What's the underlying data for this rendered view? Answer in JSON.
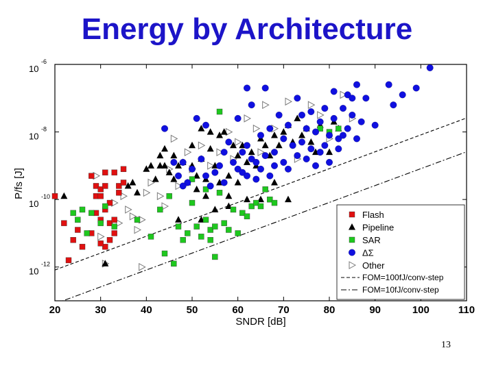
{
  "slide": {
    "title": "Energy by Architecture",
    "number": "13"
  },
  "chart_data": {
    "type": "scatter",
    "title": "Energy by Architecture",
    "xlabel": "SNDR [dB]",
    "ylabel": "P/fs [J]",
    "xlim": [
      20,
      110
    ],
    "ylim": [
      -13,
      -6
    ],
    "y_scale": "log10",
    "xticks": [
      "20",
      "30",
      "40",
      "50",
      "60",
      "70",
      "80",
      "90",
      "100",
      "110"
    ],
    "yticks": [
      {
        "value": -6,
        "base": "10",
        "exp": "-6"
      },
      {
        "value": -8,
        "base": "10",
        "exp": "-8"
      },
      {
        "value": -10,
        "base": "10",
        "exp": "-10"
      },
      {
        "value": -12,
        "base": "10",
        "exp": "-12"
      }
    ],
    "grid": false,
    "legend_position": "bottom-right",
    "series": [
      {
        "name": "Flash",
        "marker": "square",
        "color": "#e01010",
        "points": [
          [
            20,
            -9.9
          ],
          [
            22,
            -10.7
          ],
          [
            23,
            -11.8
          ],
          [
            24,
            -11.2
          ],
          [
            25,
            -10.9
          ],
          [
            26,
            -11.4
          ],
          [
            28,
            -11.0
          ],
          [
            28,
            -9.3
          ],
          [
            29,
            -9.9
          ],
          [
            29,
            -9.6
          ],
          [
            30,
            -9.7
          ],
          [
            30,
            -9.9
          ],
          [
            30,
            -10.6
          ],
          [
            31,
            -9.2
          ],
          [
            31,
            -9.6
          ],
          [
            31,
            -10.3
          ],
          [
            31,
            -11.4
          ],
          [
            32,
            -10.1
          ],
          [
            32,
            -10.7
          ],
          [
            32,
            -11.2
          ],
          [
            33,
            -9.2
          ],
          [
            33,
            -10.6
          ],
          [
            33,
            -11.0
          ],
          [
            34,
            -9.6
          ],
          [
            34,
            -9.8
          ],
          [
            35,
            -9.1
          ],
          [
            35,
            -9.5
          ],
          [
            29,
            -10.4
          ],
          [
            30,
            -11.3
          ]
        ]
      },
      {
        "name": "Pipeline",
        "marker": "triangle",
        "color": "#000000",
        "points": [
          [
            22,
            -9.9
          ],
          [
            31,
            -11.9
          ],
          [
            36,
            -9.6
          ],
          [
            37,
            -9.5
          ],
          [
            38,
            -9.8
          ],
          [
            40,
            -9.1
          ],
          [
            41,
            -9.0
          ],
          [
            42,
            -9.4
          ],
          [
            43,
            -8.7
          ],
          [
            43,
            -9.0
          ],
          [
            44,
            -8.5
          ],
          [
            44,
            -9.0
          ],
          [
            45,
            -9.2
          ],
          [
            46,
            -8.7
          ],
          [
            46,
            -9.4
          ],
          [
            47,
            -9.0
          ],
          [
            48,
            -8.9
          ],
          [
            49,
            -9.5
          ],
          [
            50,
            -9.0
          ],
          [
            50,
            -8.4
          ],
          [
            51,
            -9.3
          ],
          [
            51,
            -9.7
          ],
          [
            52,
            -8.8
          ],
          [
            52,
            -7.9
          ],
          [
            53,
            -9.4
          ],
          [
            53,
            -9.9
          ],
          [
            54,
            -8.0
          ],
          [
            54,
            -8.5
          ],
          [
            55,
            -9.0
          ],
          [
            56,
            -8.1
          ],
          [
            56,
            -9.5
          ],
          [
            57,
            -8.0
          ],
          [
            58,
            -9.3
          ],
          [
            58,
            -10.2
          ],
          [
            59,
            -8.4
          ],
          [
            60,
            -8.7
          ],
          [
            61,
            -8.4
          ],
          [
            62,
            -8.9
          ],
          [
            63,
            -8.6
          ],
          [
            64,
            -9.0
          ],
          [
            65,
            -8.2
          ],
          [
            66,
            -8.4
          ],
          [
            67,
            -8.7
          ],
          [
            68,
            -8.1
          ],
          [
            69,
            -8.4
          ],
          [
            70,
            -8.0
          ],
          [
            71,
            -7.8
          ],
          [
            72,
            -8.3
          ],
          [
            73,
            -7.6
          ],
          [
            74,
            -8.1
          ],
          [
            75,
            -7.9
          ],
          [
            76,
            -8.3
          ],
          [
            77,
            -8.6
          ],
          [
            78,
            -7.8
          ],
          [
            80,
            -8.6
          ],
          [
            81,
            -7.7
          ],
          [
            82,
            -7.9
          ],
          [
            60,
            -9.5
          ],
          [
            62,
            -10.0
          ],
          [
            65,
            -10.0
          ],
          [
            55,
            -10.3
          ],
          [
            58,
            -9.9
          ],
          [
            68,
            -9.5
          ],
          [
            71,
            -10.0
          ],
          [
            47,
            -10.6
          ],
          [
            52,
            -10.6
          ]
        ]
      },
      {
        "name": "SAR",
        "marker": "square",
        "color": "#1ec81e",
        "points": [
          [
            24,
            -10.4
          ],
          [
            25,
            -10.6
          ],
          [
            26,
            -10.3
          ],
          [
            27,
            -11.0
          ],
          [
            28,
            -10.4
          ],
          [
            30,
            -10.7
          ],
          [
            31,
            -10.2
          ],
          [
            33,
            -10.8
          ],
          [
            38,
            -10.6
          ],
          [
            41,
            -11.1
          ],
          [
            43,
            -10.3
          ],
          [
            44,
            -11.6
          ],
          [
            45,
            -9.9
          ],
          [
            46,
            -11.9
          ],
          [
            47,
            -10.8
          ],
          [
            48,
            -11.2
          ],
          [
            49,
            -11.0
          ],
          [
            50,
            -10.1
          ],
          [
            50,
            -9.4
          ],
          [
            51,
            -10.8
          ],
          [
            52,
            -11.1
          ],
          [
            53,
            -10.6
          ],
          [
            53,
            -9.7
          ],
          [
            54,
            -10.9
          ],
          [
            54,
            -11.2
          ],
          [
            55,
            -10.8
          ],
          [
            56,
            -9.8
          ],
          [
            57,
            -10.7
          ],
          [
            58,
            -10.9
          ],
          [
            59,
            -10.3
          ],
          [
            60,
            -11.0
          ],
          [
            61,
            -10.4
          ],
          [
            62,
            -10.5
          ],
          [
            63,
            -10.2
          ],
          [
            64,
            -10.1
          ],
          [
            65,
            -10.2
          ],
          [
            66,
            -9.7
          ],
          [
            67,
            -10.0
          ],
          [
            68,
            -10.1
          ],
          [
            56,
            -7.4
          ],
          [
            78,
            -7.9
          ],
          [
            80,
            -8.0
          ],
          [
            82,
            -7.9
          ],
          [
            55,
            -11.7
          ]
        ]
      },
      {
        "name": "ΔΣ",
        "marker": "circle",
        "color": "#1010e0",
        "points": [
          [
            44,
            -7.9
          ],
          [
            46,
            -8.9
          ],
          [
            47,
            -9.3
          ],
          [
            48,
            -8.9
          ],
          [
            49,
            -9.5
          ],
          [
            50,
            -9.1
          ],
          [
            51,
            -7.6
          ],
          [
            52,
            -8.8
          ],
          [
            53,
            -9.3
          ],
          [
            53,
            -7.8
          ],
          [
            54,
            -9.6
          ],
          [
            55,
            -9.2
          ],
          [
            56,
            -9.0
          ],
          [
            57,
            -8.6
          ],
          [
            57,
            -9.5
          ],
          [
            58,
            -8.3
          ],
          [
            59,
            -8.9
          ],
          [
            60,
            -9.1
          ],
          [
            60,
            -7.6
          ],
          [
            61,
            -8.6
          ],
          [
            61,
            -9.2
          ],
          [
            62,
            -8.4
          ],
          [
            62,
            -9.3
          ],
          [
            63,
            -7.2
          ],
          [
            63,
            -8.8
          ],
          [
            64,
            -8.9
          ],
          [
            64,
            -9.4
          ],
          [
            65,
            -8.1
          ],
          [
            65,
            -9.1
          ],
          [
            66,
            -6.7
          ],
          [
            66,
            -8.7
          ],
          [
            67,
            -9.3
          ],
          [
            67,
            -7.9
          ],
          [
            68,
            -8.6
          ],
          [
            68,
            -9.0
          ],
          [
            69,
            -7.5
          ],
          [
            70,
            -8.2
          ],
          [
            70,
            -8.9
          ],
          [
            71,
            -7.8
          ],
          [
            71,
            -9.1
          ],
          [
            72,
            -8.4
          ],
          [
            73,
            -7.0
          ],
          [
            73,
            -8.7
          ],
          [
            74,
            -7.5
          ],
          [
            74,
            -8.3
          ],
          [
            75,
            -7.9
          ],
          [
            75,
            -8.8
          ],
          [
            76,
            -7.4
          ],
          [
            76,
            -8.5
          ],
          [
            77,
            -8.0
          ],
          [
            77,
            -9.0
          ],
          [
            78,
            -7.7
          ],
          [
            78,
            -8.6
          ],
          [
            79,
            -7.3
          ],
          [
            79,
            -8.4
          ],
          [
            80,
            -8.1
          ],
          [
            80,
            -8.9
          ],
          [
            81,
            -6.8
          ],
          [
            81,
            -7.6
          ],
          [
            82,
            -8.2
          ],
          [
            82,
            -8.5
          ],
          [
            83,
            -7.3
          ],
          [
            83,
            -8.1
          ],
          [
            84,
            -6.9
          ],
          [
            84,
            -7.9
          ],
          [
            85,
            -7.5
          ],
          [
            85,
            -7.0
          ],
          [
            86,
            -6.6
          ],
          [
            86,
            -8.2
          ],
          [
            87,
            -7.7
          ],
          [
            90,
            -7.8
          ],
          [
            93,
            -6.6
          ],
          [
            94,
            -7.2
          ],
          [
            96,
            -6.9
          ],
          [
            99,
            -6.7
          ],
          [
            102,
            -6.1
          ],
          [
            88,
            -7.0
          ],
          [
            62,
            -6.7
          ],
          [
            48,
            -9.6
          ]
        ]
      },
      {
        "name": "Other",
        "marker": "triangle-right",
        "color": "#7a7a7a",
        "points": [
          [
            29,
            -9.3
          ],
          [
            30,
            -11.1
          ],
          [
            31,
            -11.9
          ],
          [
            33,
            -10.1
          ],
          [
            35,
            -9.9
          ],
          [
            37,
            -10.5
          ],
          [
            38,
            -10.9
          ],
          [
            39,
            -10.6
          ],
          [
            39,
            -12.0
          ],
          [
            40,
            -9.8
          ],
          [
            41,
            -9.5
          ],
          [
            43,
            -9.9
          ],
          [
            44,
            -10.2
          ],
          [
            45,
            -9.1
          ],
          [
            46,
            -8.2
          ],
          [
            47,
            -9.6
          ],
          [
            49,
            -8.6
          ],
          [
            50,
            -9.1
          ],
          [
            52,
            -8.4
          ],
          [
            54,
            -9.0
          ],
          [
            56,
            -8.6
          ],
          [
            58,
            -8.0
          ],
          [
            60,
            -8.3
          ],
          [
            62,
            -7.6
          ],
          [
            64,
            -7.9
          ],
          [
            65,
            -8.6
          ],
          [
            66,
            -7.2
          ],
          [
            68,
            -7.9
          ],
          [
            71,
            -7.1
          ],
          [
            73,
            -8.8
          ],
          [
            76,
            -7.2
          ],
          [
            78,
            -7.5
          ],
          [
            80,
            -8.2
          ],
          [
            83,
            -6.9
          ],
          [
            85,
            -7.6
          ],
          [
            34,
            -10.7
          ],
          [
            36,
            -10.3
          ],
          [
            59,
            -8.8
          ]
        ]
      }
    ],
    "reference_lines": [
      {
        "name": "FOM=100fJ/conv-step",
        "style": "dashed",
        "fom_joules": 1e-13
      },
      {
        "name": "FOM=10fJ/conv-step",
        "style": "dash-dot",
        "fom_joules": 1e-14
      }
    ]
  }
}
